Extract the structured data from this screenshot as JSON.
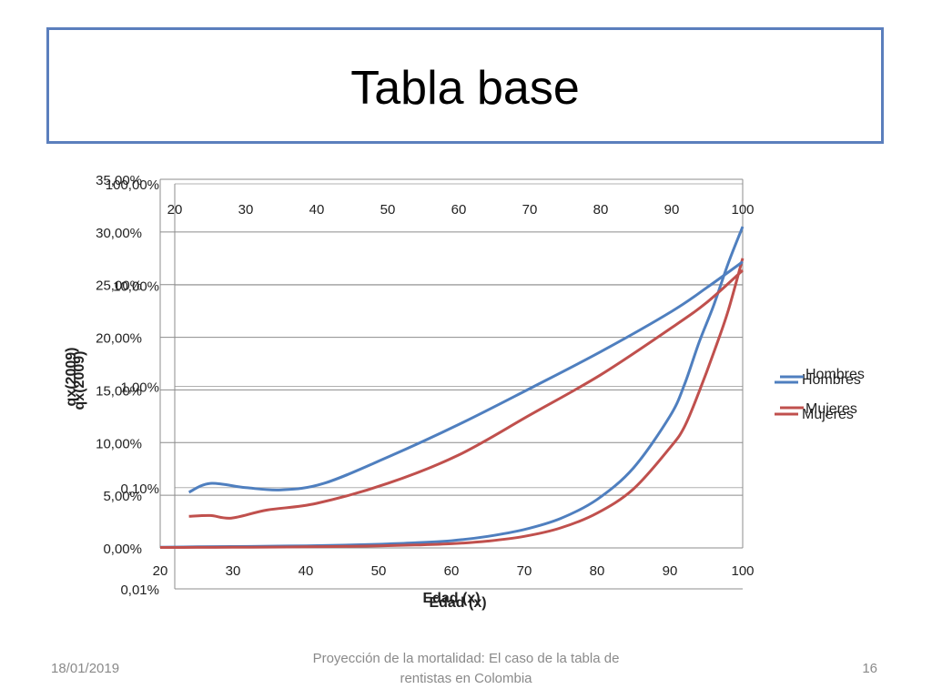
{
  "slide": {
    "title": "Tabla base",
    "footer": {
      "date": "18/01/2019",
      "text": "Proyección de la mortalidad: El caso de la tabla de rentistas en Colombia",
      "page": "16"
    }
  },
  "colors": {
    "hombres": "#4f7fbf",
    "mujeres": "#c0504d",
    "title_border": "#5b7fbd"
  },
  "chart_data": [
    {
      "type": "line",
      "title": "",
      "xlabel": "Edad (x)",
      "ylabel": "qx(2009)",
      "x_ticks": [
        "20",
        "30",
        "40",
        "50",
        "60",
        "70",
        "80",
        "90",
        "100"
      ],
      "y_ticks": [
        "0,00%",
        "5,00%",
        "10,00%",
        "15,00%",
        "20,00%",
        "25,00%",
        "30,00%",
        "35,00%"
      ],
      "xlim": [
        20,
        100
      ],
      "ylim": [
        0,
        35
      ],
      "grid": true,
      "legend": "right",
      "series": [
        {
          "name": "Hombres",
          "x": [
            20,
            25,
            30,
            35,
            40,
            45,
            50,
            55,
            60,
            65,
            70,
            75,
            80,
            85,
            90,
            92,
            94,
            96,
            98,
            100
          ],
          "y": [
            0.07,
            0.1,
            0.13,
            0.16,
            0.2,
            0.26,
            0.35,
            0.48,
            0.68,
            1.1,
            1.75,
            2.8,
            4.6,
            7.6,
            12.5,
            15.5,
            19.5,
            23,
            27,
            30.5
          ]
        },
        {
          "name": "Mujeres",
          "x": [
            20,
            25,
            30,
            35,
            40,
            45,
            50,
            55,
            60,
            65,
            70,
            75,
            80,
            85,
            90,
            92,
            94,
            96,
            98,
            100
          ],
          "y": [
            0.04,
            0.05,
            0.06,
            0.08,
            0.1,
            0.14,
            0.2,
            0.28,
            0.4,
            0.65,
            1.1,
            1.9,
            3.3,
            5.6,
            9.5,
            11.5,
            14.8,
            18.5,
            22.5,
            27.5
          ]
        }
      ]
    },
    {
      "type": "line",
      "title": "",
      "xlabel": "Edad (x)",
      "ylabel": "qx(2009)",
      "scale": "log",
      "x_ticks": [
        "20",
        "30",
        "40",
        "50",
        "60",
        "70",
        "80",
        "90",
        "100"
      ],
      "y_ticks": [
        "0,01%",
        "0,10%",
        "1,00%",
        "10,00%",
        "100,00%"
      ],
      "xlim": [
        20,
        100
      ],
      "ylim": [
        0.01,
        100
      ],
      "legend": "right",
      "series": [
        {
          "name": "Hombres",
          "x": [
            22,
            25,
            30,
            35,
            41,
            50,
            60,
            70,
            80,
            90,
            95,
            100
          ],
          "y": [
            0.09,
            0.11,
            0.1,
            0.095,
            0.11,
            0.2,
            0.42,
            0.95,
            2.2,
            5.5,
            9.5,
            17
          ]
        },
        {
          "name": "Mujeres",
          "x": [
            22,
            25,
            28,
            33,
            40,
            50,
            60,
            70,
            80,
            90,
            95,
            100
          ],
          "y": [
            0.052,
            0.053,
            0.05,
            0.06,
            0.07,
            0.11,
            0.21,
            0.52,
            1.3,
            3.8,
            6.8,
            14
          ]
        }
      ]
    }
  ]
}
